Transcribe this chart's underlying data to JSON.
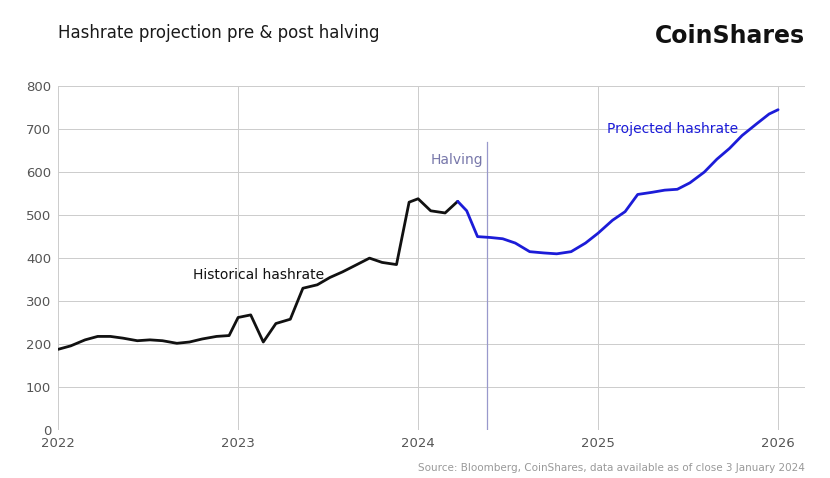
{
  "title": "Hashrate projection pre & post halving",
  "coinshares_label": "CoinShares",
  "source_text": "Source: Bloomberg, CoinShares, data available as of close 3 January 2024",
  "ylim": [
    0,
    800
  ],
  "yticks": [
    0,
    100,
    200,
    300,
    400,
    500,
    600,
    700,
    800
  ],
  "xlim_start": 2022.0,
  "xlim_end": 2026.15,
  "xtick_labels": [
    "2022",
    "2023",
    "2024",
    "2025",
    "2026"
  ],
  "xtick_positions": [
    2022.0,
    2023.0,
    2024.0,
    2025.0,
    2026.0
  ],
  "halving_x": 2024.38,
  "halving_label": "Halving",
  "historical_label": "Historical hashrate",
  "projected_label": "Projected hashrate",
  "historical_color": "#111111",
  "projected_color": "#1c1cd8",
  "halving_line_color": "#9999cc",
  "halving_label_color": "#7777aa",
  "background_color": "#ffffff",
  "grid_color": "#cccccc",
  "historical_x": [
    2022.0,
    2022.07,
    2022.15,
    2022.22,
    2022.29,
    2022.36,
    2022.44,
    2022.51,
    2022.58,
    2022.66,
    2022.73,
    2022.8,
    2022.88,
    2022.95,
    2023.0,
    2023.07,
    2023.14,
    2023.21,
    2023.29,
    2023.36,
    2023.44,
    2023.51,
    2023.58,
    2023.66,
    2023.73,
    2023.8,
    2023.88,
    2023.95,
    2024.0,
    2024.07,
    2024.15,
    2024.22
  ],
  "historical_y": [
    188,
    196,
    210,
    218,
    218,
    214,
    208,
    210,
    208,
    202,
    205,
    212,
    218,
    220,
    262,
    268,
    205,
    248,
    258,
    330,
    338,
    355,
    368,
    385,
    400,
    390,
    385,
    530,
    538,
    510,
    505,
    532
  ],
  "projected_x": [
    2024.22,
    2024.27,
    2024.33,
    2024.4,
    2024.47,
    2024.54,
    2024.62,
    2024.7,
    2024.77,
    2024.85,
    2024.93,
    2025.0,
    2025.08,
    2025.15,
    2025.22,
    2025.3,
    2025.37,
    2025.44,
    2025.51,
    2025.59,
    2025.66,
    2025.73,
    2025.8,
    2025.88,
    2025.95,
    2026.0
  ],
  "projected_y": [
    532,
    510,
    450,
    448,
    445,
    435,
    415,
    412,
    410,
    415,
    435,
    458,
    488,
    508,
    548,
    553,
    558,
    560,
    575,
    600,
    630,
    655,
    685,
    712,
    735,
    745
  ],
  "linewidth": 2.0,
  "title_fontsize": 12,
  "coinshares_fontsize": 17,
  "label_fontsize": 10,
  "tick_fontsize": 9.5,
  "source_fontsize": 7.5
}
